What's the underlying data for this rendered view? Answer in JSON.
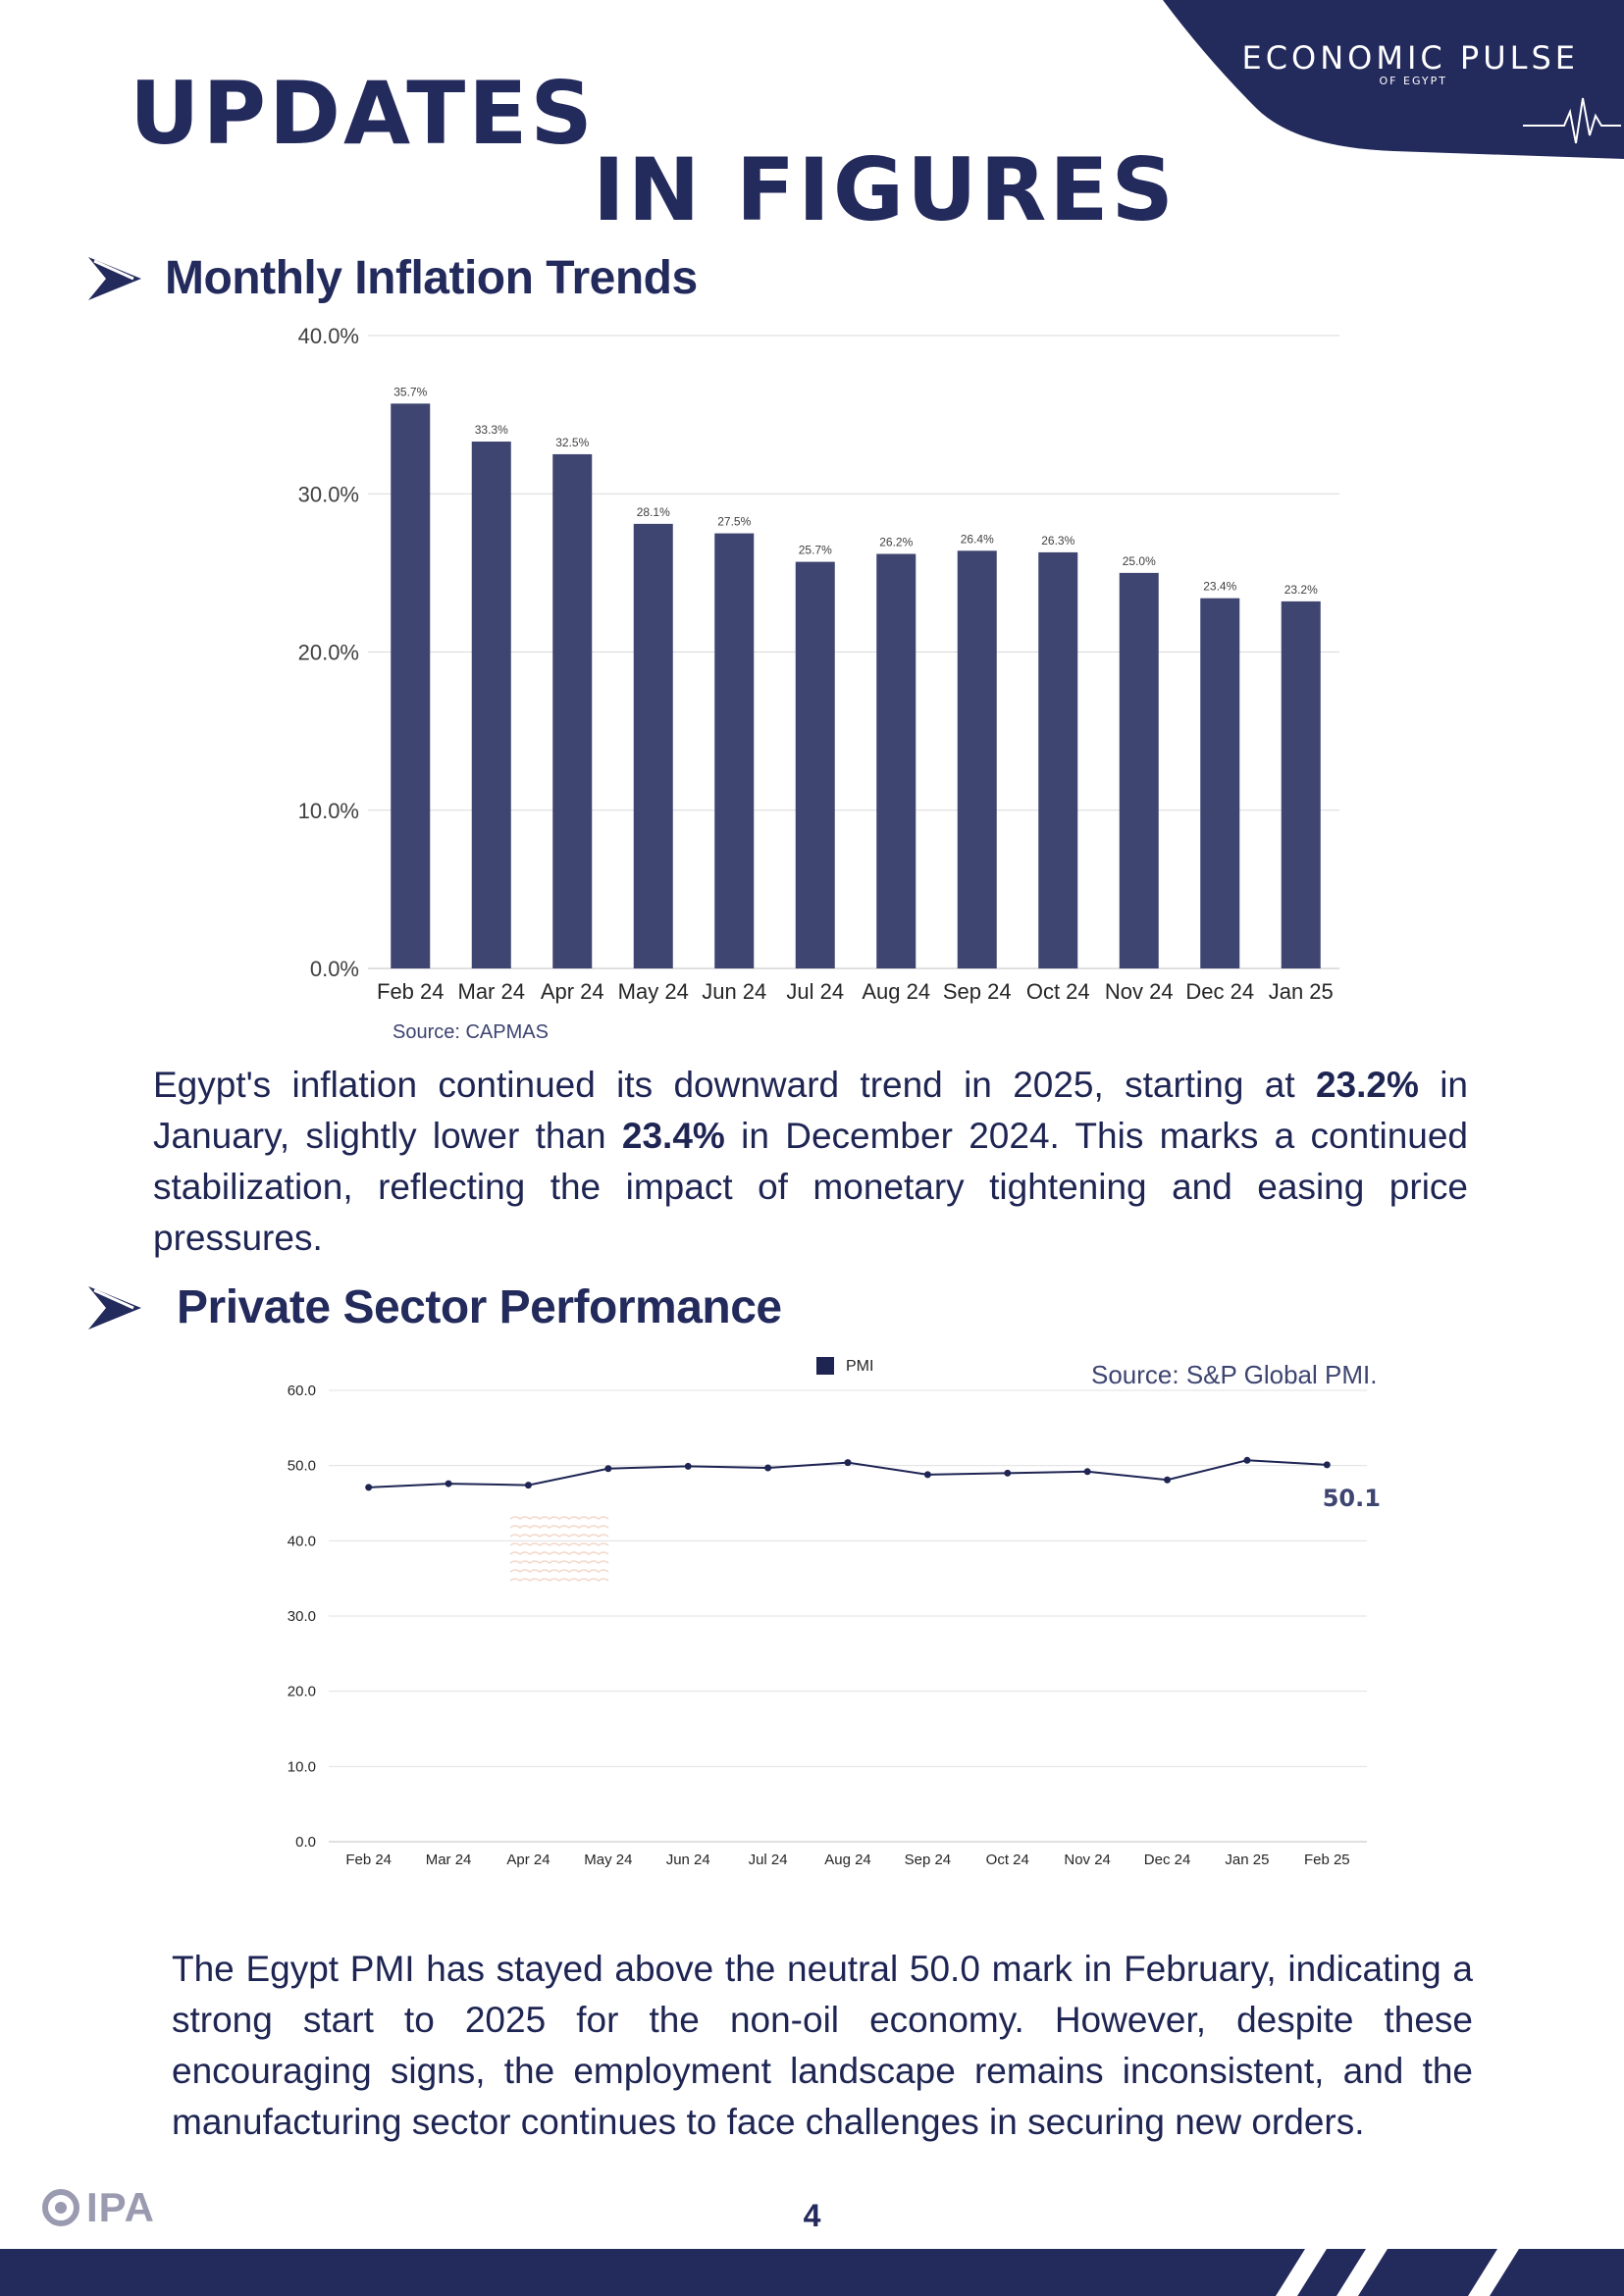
{
  "header": {
    "brand_title": "ECONOMIC PULSE",
    "brand_subtitle": "OF EGYPT",
    "headline_line1": "UPDATES",
    "headline_line2": "IN FIGURES"
  },
  "inflation_section": {
    "title": "Monthly Inflation Trends",
    "source": "Source: CAPMAS",
    "paragraph": {
      "t1": "Egypt's inflation continued its downward trend in 2025, starting at ",
      "b1": "23.2%",
      "t2": " in January, slightly lower than ",
      "b2": "23.4%",
      "t3": " in December 2024. This marks a continued stabilization, reflecting the impact of monetary tightening and easing price pressures."
    }
  },
  "pmi_section": {
    "title": "Private Sector Performance",
    "source": "Source: S&P Global PMI.",
    "paragraph": "The Egypt PMI has stayed above the neutral 50.0 mark in February, indicating a strong start to 2025 for the non-oil economy. However, despite these encouraging signs, the employment landscape remains inconsistent, and the manufacturing sector continues to face challenges in securing new orders."
  },
  "chart_data": [
    {
      "type": "bar",
      "title": "Monthly Inflation Trends",
      "categories": [
        "Feb 24",
        "Mar 24",
        "Apr 24",
        "May 24",
        "Jun 24",
        "Jul 24",
        "Aug 24",
        "Sep 24",
        "Oct 24",
        "Nov 24",
        "Dec 24",
        "Jan 25"
      ],
      "values": [
        35.7,
        33.3,
        32.5,
        28.1,
        27.5,
        25.7,
        26.2,
        26.4,
        26.3,
        25.0,
        23.4,
        23.2
      ],
      "value_labels": [
        "35.7%",
        "33.3%",
        "32.5%",
        "28.1%",
        "27.5%",
        "25.7%",
        "26.2%",
        "26.4%",
        "26.3%",
        "25.0%",
        "23.4%",
        "23.2%"
      ],
      "y_ticks": [
        0,
        10,
        20,
        30,
        40
      ],
      "y_tick_labels": [
        "0.0%",
        "10.0%",
        "20.0%",
        "30.0%",
        "40.0%"
      ],
      "ylim": [
        0,
        40
      ],
      "xlabel": "",
      "ylabel": "",
      "grid": true,
      "color": "#3e4570"
    },
    {
      "type": "line",
      "title": "Private Sector Performance",
      "categories": [
        "Feb 24",
        "Mar 24",
        "Apr 24",
        "May 24",
        "Jun 24",
        "Jul 24",
        "Aug 24",
        "Sep 24",
        "Oct 24",
        "Nov 24",
        "Dec 24",
        "Jan 25",
        "Feb 25"
      ],
      "series": [
        {
          "name": "PMI",
          "values": [
            47.1,
            47.6,
            47.4,
            49.6,
            49.9,
            49.7,
            50.4,
            48.8,
            49.0,
            49.2,
            48.1,
            50.7,
            50.1
          ]
        }
      ],
      "last_value_label": "50.1",
      "y_ticks": [
        0,
        10,
        20,
        30,
        40,
        50,
        60
      ],
      "y_tick_labels": [
        "0.0",
        "10.0",
        "20.0",
        "30.0",
        "40.0",
        "50.0",
        "60.0"
      ],
      "ylim": [
        0,
        60
      ],
      "legend": "top-center",
      "grid": true,
      "color": "#1e2553"
    }
  ],
  "footer": {
    "page_number": "4",
    "logo_text": "IPA"
  },
  "colors": {
    "navy": "#232a5c",
    "bar": "#3e4570",
    "text": "#1e2553"
  }
}
